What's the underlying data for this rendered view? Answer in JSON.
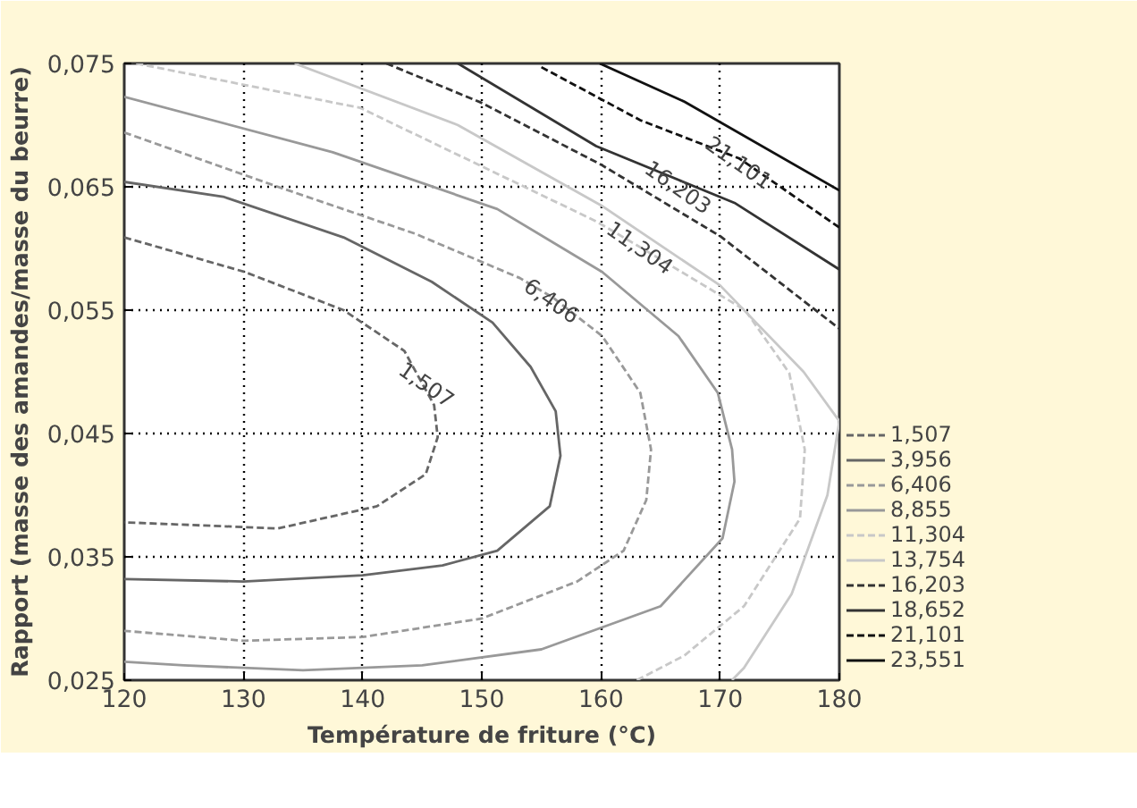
{
  "chart_data": {
    "type": "line",
    "xlabel": "Température de friture (°C)",
    "ylabel": "Rapport (masse des amandes/masse du beurre)",
    "xlim": [
      120,
      180
    ],
    "ylim": [
      0.025,
      0.075
    ],
    "xticks": [
      120,
      130,
      140,
      150,
      160,
      170,
      180
    ],
    "yticks": [
      {
        "value": 0.025,
        "label": "0,025"
      },
      {
        "value": 0.035,
        "label": "0,035"
      },
      {
        "value": 0.045,
        "label": "0,045"
      },
      {
        "value": 0.055,
        "label": "0,055"
      },
      {
        "value": 0.065,
        "label": "0,065"
      },
      {
        "value": 0.075,
        "label": "0,075"
      }
    ],
    "grid": true,
    "legend": "right",
    "marker": "none",
    "series": [
      {
        "name": "1,507",
        "color": "#666666",
        "line_style": "dashed",
        "x": [
          120,
          130.1,
          138.4,
          143.5,
          146.0,
          146.3,
          145.3,
          141.2,
          132.9,
          120
        ],
        "values": [
          0.0609,
          0.0581,
          0.055,
          0.0517,
          0.0473,
          0.0447,
          0.0417,
          0.0391,
          0.0373,
          0.0378
        ]
      },
      {
        "name": "3,956",
        "color": "#666666",
        "line_style": "solid",
        "x": [
          120,
          128.3,
          138.4,
          145.8,
          150.9,
          154.1,
          156.2,
          156.6,
          155.7,
          151.3,
          146.7,
          140,
          130,
          120
        ],
        "values": [
          0.0654,
          0.0642,
          0.0609,
          0.0573,
          0.054,
          0.0504,
          0.0468,
          0.0432,
          0.0391,
          0.0355,
          0.0343,
          0.0335,
          0.033,
          0.0332
        ]
      },
      {
        "name": "6,406",
        "color": "#999999",
        "line_style": "dashed",
        "x": [
          120,
          132.9,
          144.4,
          153.2,
          156.0,
          160.1,
          163.3,
          164.2,
          163.8,
          161.9,
          158,
          150,
          140,
          130,
          120
        ],
        "values": [
          0.0694,
          0.065,
          0.0612,
          0.0576,
          0.056,
          0.0529,
          0.0483,
          0.0437,
          0.0396,
          0.0355,
          0.033,
          0.03,
          0.0285,
          0.0282,
          0.029
        ]
      },
      {
        "name": "8,855",
        "color": "#999999",
        "line_style": "solid",
        "x": [
          120,
          137.5,
          151.3,
          160.1,
          166.5,
          169.8,
          171.0,
          171.2,
          170.2,
          165,
          155,
          145,
          135,
          125,
          120
        ],
        "values": [
          0.0723,
          0.0678,
          0.0632,
          0.0581,
          0.0529,
          0.0483,
          0.0437,
          0.0411,
          0.0365,
          0.031,
          0.0275,
          0.0262,
          0.0258,
          0.0262,
          0.0265
        ]
      },
      {
        "name": "11,304",
        "color": "#c8c8c8",
        "line_style": "dashed",
        "x": [
          121,
          139.8,
          159.6,
          163.3,
          172.1,
          175.8,
          177.1,
          176.7,
          172,
          167,
          163
        ],
        "values": [
          0.075,
          0.0714,
          0.0622,
          0.0601,
          0.055,
          0.0499,
          0.0437,
          0.0381,
          0.031,
          0.027,
          0.025
        ]
      },
      {
        "name": "13,754",
        "color": "#c8c8c8",
        "line_style": "solid",
        "x": [
          134.3,
          148,
          160,
          170,
          177,
          180,
          179,
          176,
          172,
          171
        ],
        "values": [
          0.075,
          0.07,
          0.0635,
          0.057,
          0.05,
          0.046,
          0.04,
          0.032,
          0.026,
          0.025
        ]
      },
      {
        "name": "16,203",
        "color": "#333333",
        "line_style": "dashed",
        "x": [
          142,
          150,
          160,
          170,
          180
        ],
        "values": [
          0.075,
          0.0718,
          0.0668,
          0.061,
          0.0535
        ]
      },
      {
        "name": "18,652",
        "color": "#333333",
        "line_style": "solid",
        "x": [
          148,
          159.6,
          171.2,
          180
        ],
        "values": [
          0.075,
          0.0683,
          0.0637,
          0.0583
        ]
      },
      {
        "name": "21,101",
        "color": "#111111",
        "line_style": "dashed",
        "x": [
          155,
          163.3,
          171.6,
          180
        ],
        "values": [
          0.0747,
          0.0704,
          0.0673,
          0.0617
        ]
      },
      {
        "name": "23,551",
        "color": "#111111",
        "line_style": "solid",
        "x": [
          159.9,
          167.0,
          180
        ],
        "values": [
          0.075,
          0.0719,
          0.0647
        ]
      }
    ],
    "annotations": [
      {
        "text": "1,507",
        "x": 145.4,
        "y": 0.049
      },
      {
        "text": "6,406",
        "x": 155.9,
        "y": 0.0558
      },
      {
        "text": "11,304",
        "x": 163.3,
        "y": 0.0601
      },
      {
        "text": "16,203",
        "x": 166.5,
        "y": 0.065
      },
      {
        "text": "21,101",
        "x": 171.6,
        "y": 0.067
      }
    ]
  }
}
